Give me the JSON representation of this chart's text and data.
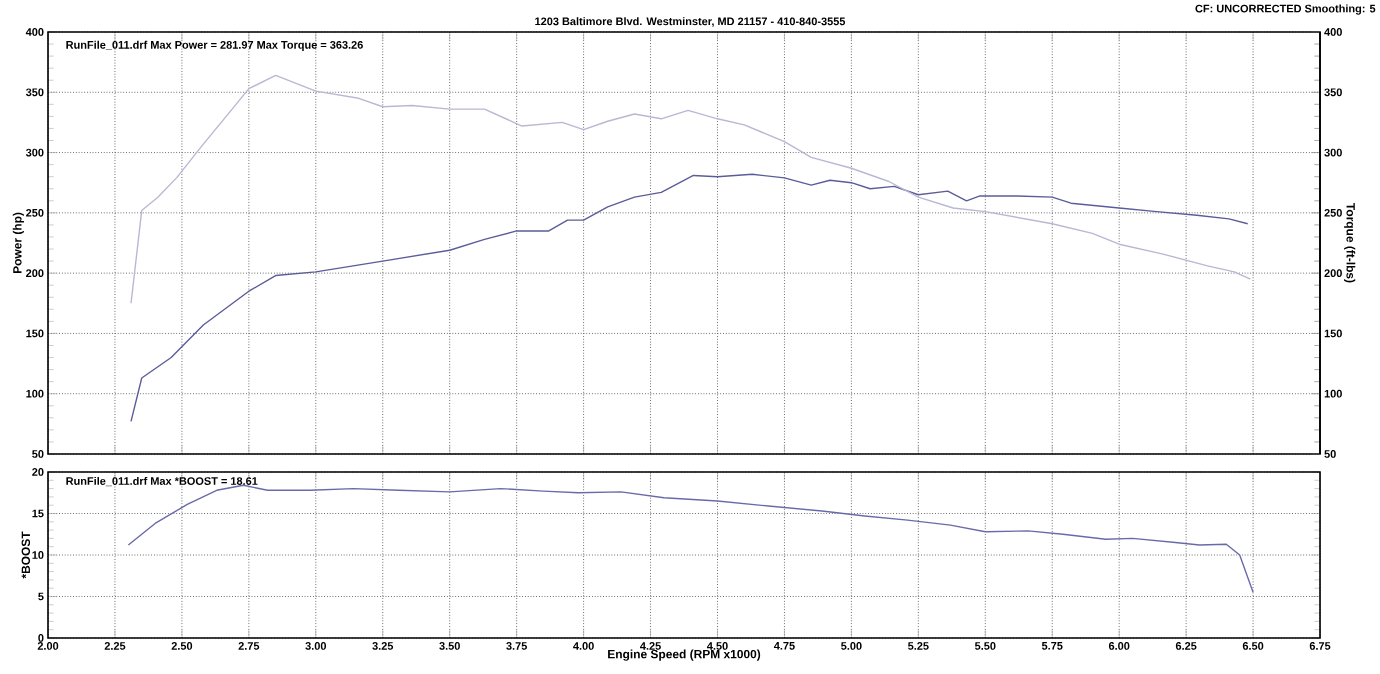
{
  "chart_data": [
    {
      "type": "line",
      "subtitle": "1203 Baltimore Blvd. Westminster, MD 21157 - 410-840-3555",
      "ylabel": "Power (hp)",
      "y2label": "Torque (ft-lbs)",
      "annotations": [
        "RunFile_011.drf Max Power = 281.97    Max Torque = 363.26",
        "CF: UNCORRECTED  Smoothing: 5"
      ],
      "xlim": [
        2,
        6.75
      ],
      "xticks": [
        2,
        2.25,
        2.5,
        2.75,
        3,
        3.25,
        3.5,
        3.75,
        4,
        4.25,
        4.5,
        4.75,
        5,
        5.25,
        5.5,
        5.75,
        6,
        6.25,
        6.5,
        6.75
      ],
      "ylim": [
        50,
        400
      ],
      "yticks": [
        50,
        100,
        150,
        200,
        250,
        300,
        350,
        400
      ],
      "y2lim": [
        50,
        400
      ],
      "y2ticks": [
        50,
        100,
        150,
        200,
        250,
        300,
        350,
        400
      ],
      "tick_labels": "y",
      "grid": true,
      "series": [
        {
          "color": "#5c5c9a",
          "x": [
            2.31,
            2.35,
            2.46,
            2.58,
            2.75,
            2.85,
            3.0,
            3.25,
            3.5,
            3.63,
            3.75,
            3.87,
            3.94,
            4.0,
            4.09,
            4.19,
            4.29,
            4.41,
            4.5,
            4.63,
            4.75,
            4.85,
            4.92,
            5.0,
            5.07,
            5.16,
            5.25,
            5.36,
            5.43,
            5.48,
            5.62,
            5.75,
            5.82,
            6.0,
            6.14,
            6.29,
            6.41,
            6.48
          ],
          "values": [
            77,
            113,
            130,
            157,
            185,
            198,
            201,
            210,
            219,
            228,
            235,
            235,
            244,
            244,
            255,
            263,
            267,
            281,
            280,
            282,
            279,
            273,
            277,
            275,
            270,
            272,
            265,
            268,
            260,
            264,
            264,
            263,
            258,
            254,
            251,
            248,
            245,
            241
          ]
        },
        {
          "color": "#b8b8d4",
          "axis": "y2",
          "x": [
            2.31,
            2.35,
            2.41,
            2.48,
            2.58,
            2.68,
            2.75,
            2.85,
            3.0,
            3.16,
            3.25,
            3.36,
            3.5,
            3.63,
            3.77,
            3.92,
            4.0,
            4.09,
            4.19,
            4.29,
            4.39,
            4.5,
            4.6,
            4.75,
            4.85,
            5.0,
            5.14,
            5.25,
            5.38,
            5.5,
            5.75,
            5.9,
            6.0,
            6.16,
            6.33,
            6.43,
            6.49
          ],
          "values": [
            175,
            252,
            263,
            279,
            307,
            334,
            353,
            364,
            351,
            345,
            338,
            339,
            336,
            336,
            322,
            325,
            319,
            326,
            332,
            328,
            335,
            328,
            323,
            309,
            296,
            287,
            276,
            263,
            254,
            251,
            241,
            233,
            224,
            216,
            206,
            201,
            195
          ]
        }
      ]
    },
    {
      "type": "line",
      "ylabel": "*BOOST",
      "xlabel": "Engine Speed (RPM x1000)",
      "annotations": [
        "RunFile_011.drf Max *BOOST = 18.61"
      ],
      "xlim": [
        2,
        6.75
      ],
      "xticks": [
        {
          "value": 2,
          "label": "2.00"
        },
        {
          "value": 2.25,
          "label": "2.25"
        },
        {
          "value": 2.5,
          "label": "2.50"
        },
        {
          "value": 2.75,
          "label": "2.75"
        },
        {
          "value": 3,
          "label": "3.00"
        },
        {
          "value": 3.25,
          "label": "3.25"
        },
        {
          "value": 3.5,
          "label": "3.50"
        },
        {
          "value": 3.75,
          "label": "3.75"
        },
        {
          "value": 4,
          "label": "4.00"
        },
        {
          "value": 4.25,
          "label": "4.25"
        },
        {
          "value": 4.5,
          "label": "4.50"
        },
        {
          "value": 4.75,
          "label": "4.75"
        },
        {
          "value": 5,
          "label": "5.00"
        },
        {
          "value": 5.25,
          "label": "5.25"
        },
        {
          "value": 5.5,
          "label": "5.50"
        },
        {
          "value": 5.75,
          "label": "5.75"
        },
        {
          "value": 6,
          "label": "6.00"
        },
        {
          "value": 6.25,
          "label": "6.25"
        },
        {
          "value": 6.5,
          "label": "6.50"
        },
        {
          "value": 6.75,
          "label": "6.75"
        }
      ],
      "ylim": [
        0,
        20
      ],
      "yticks": [
        0,
        5,
        10,
        15,
        20
      ],
      "grid": true,
      "series": [
        {
          "color": "#6a6aaa",
          "x": [
            2.3,
            2.4,
            2.52,
            2.63,
            2.73,
            2.82,
            2.98,
            3.14,
            3.31,
            3.5,
            3.69,
            3.85,
            3.98,
            4.14,
            4.3,
            4.5,
            4.69,
            4.89,
            5.05,
            5.21,
            5.37,
            5.5,
            5.66,
            5.79,
            5.95,
            6.05,
            6.21,
            6.3,
            6.4,
            6.45,
            6.5
          ],
          "values": [
            11.2,
            13.8,
            16.1,
            17.8,
            18.4,
            17.8,
            17.8,
            18.0,
            17.8,
            17.6,
            18.0,
            17.7,
            17.5,
            17.6,
            16.9,
            16.5,
            15.9,
            15.3,
            14.7,
            14.2,
            13.6,
            12.8,
            12.9,
            12.5,
            11.9,
            12.0,
            11.5,
            11.2,
            11.3,
            10,
            5.5
          ]
        }
      ]
    }
  ]
}
